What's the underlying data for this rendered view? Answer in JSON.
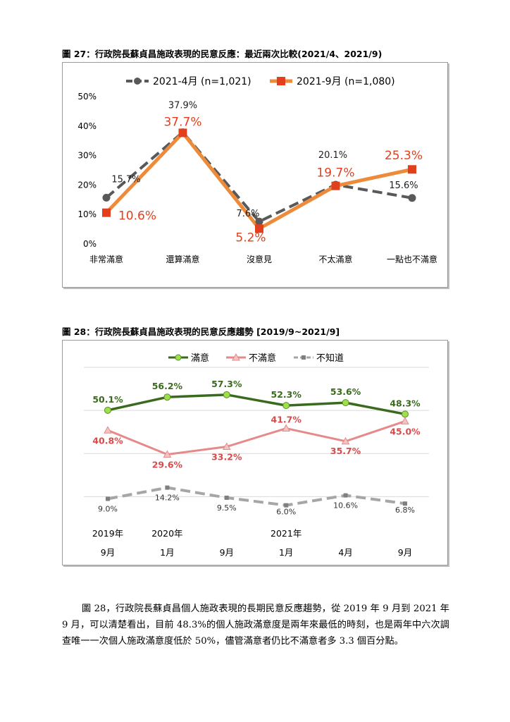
{
  "figure27": {
    "title": "圖 27：行政院長蘇貞昌施政表現的民意反應：最近兩次比較(2021/4、2021/9)"
  },
  "figure28": {
    "title": "圖 28：行政院長蘇貞昌施政表現的民意反應趨勢  [2019/9~2021/9]"
  },
  "paragraph": "圖 28，行政院長蘇貞昌個人施政表現的長期民意反應趨勢，從 2019 年 9 月到 2021 年 9 月，可以清楚看出，目前 48.3%的個人施政滿意度是兩年來最低的時刻，也是兩年中六次調查唯一一次個人施政滿意度低於 50%，儘管滿意者仍比不滿意者多 3.3 個百分點。",
  "chart_data": [
    {
      "type": "line",
      "categories": [
        "非常滿意",
        "還算滿意",
        "沒意見",
        "不太滿意",
        "一點也不滿意"
      ],
      "yticks": [
        "0%",
        "10%",
        "20%",
        "30%",
        "40%",
        "50%"
      ],
      "ylim": [
        0,
        50
      ],
      "legend_position": "top",
      "grid": false,
      "series": [
        {
          "name": "2021-4月  (n=1,021)",
          "values": [
            15.7,
            37.9,
            7.6,
            20.1,
            15.6
          ],
          "labels": [
            "15.7%",
            "37.9%",
            "7.6%",
            "20.1%",
            "15.6%"
          ],
          "color": "#595959",
          "style": "dashed",
          "marker": "circle"
        },
        {
          "name": "2021-9月  (n=1,080)",
          "values": [
            10.6,
            37.7,
            5.2,
            19.7,
            25.3
          ],
          "labels": [
            "10.6%",
            "37.7%",
            "5.2%",
            "19.7%",
            "25.3%"
          ],
          "color": "#ee8b3a",
          "marker_color": "#e2401c",
          "label_color": "#e2401c",
          "style": "solid",
          "marker": "square"
        }
      ]
    },
    {
      "type": "line",
      "categories": [
        "2019年 9月",
        "2020年 1月",
        "9月",
        "2021年 1月",
        "4月",
        "9月"
      ],
      "x_top": [
        "2019年",
        "2020年",
        "",
        "2021年",
        "",
        ""
      ],
      "x_bottom": [
        "9月",
        "1月",
        "9月",
        "1月",
        "4月",
        "9月"
      ],
      "ylim": [
        0,
        70
      ],
      "legend_position": "top",
      "grid": true,
      "series": [
        {
          "name": "滿意",
          "values": [
            50.1,
            56.2,
            57.3,
            52.3,
            53.6,
            48.3
          ],
          "labels": [
            "50.1%",
            "56.2%",
            "57.3%",
            "52.3%",
            "53.6%",
            "48.3%"
          ],
          "color": "#3a6a1e",
          "marker_color": "#9ee04a",
          "label_color": "#3a6a1e"
        },
        {
          "name": "不滿意",
          "values": [
            40.8,
            29.6,
            33.2,
            41.7,
            35.7,
            45.0
          ],
          "labels": [
            "40.8%",
            "29.6%",
            "33.2%",
            "41.7%",
            "35.7%",
            "45.0%"
          ],
          "color": "#e58a8a",
          "marker_color": "#f4c4c4",
          "label_color": "#d94a4a"
        },
        {
          "name": "不知道",
          "values": [
            9.0,
            14.2,
            9.5,
            6.0,
            10.6,
            6.8
          ],
          "labels": [
            "9.0%",
            "14.2%",
            "9.5%",
            "6.0%",
            "10.6%",
            "6.8%"
          ],
          "color": "#a6a6a6",
          "marker_color": "#7f7f7f",
          "label_color": "#333333",
          "style": "dashed"
        }
      ]
    }
  ]
}
